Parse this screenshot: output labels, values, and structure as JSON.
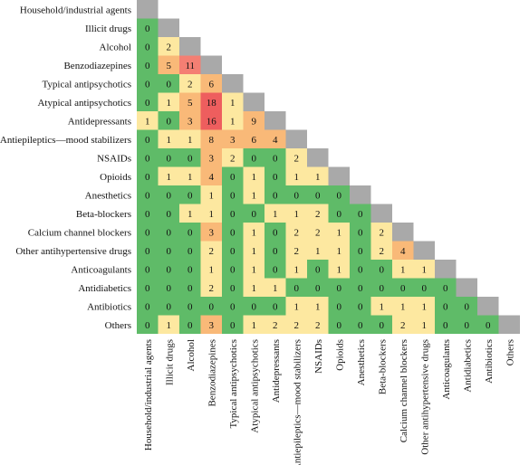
{
  "chart_data": {
    "type": "heatmap",
    "title": "",
    "xlabel": "",
    "ylabel": "",
    "categories": [
      "Household/industrial agents",
      "Illicit drugs",
      "Alcohol",
      "Benzodiazepines",
      "Typical antipsychotics",
      "Atypical antipsychotics",
      "Antidepressants",
      "Antiepileptics—mood stabilizers",
      "NSAIDs",
      "Opioids",
      "Anesthetics",
      "Beta-blockers",
      "Calcium channel blockers",
      "Other antihypertensive drugs",
      "Anticoagulants",
      "Antidiabetics",
      "Antibiotics",
      "Others"
    ],
    "values": [
      [],
      [
        0
      ],
      [
        0,
        2
      ],
      [
        0,
        5,
        11
      ],
      [
        0,
        0,
        2,
        6
      ],
      [
        0,
        1,
        5,
        18,
        1
      ],
      [
        1,
        0,
        3,
        16,
        1,
        9
      ],
      [
        0,
        1,
        1,
        8,
        3,
        6,
        4
      ],
      [
        0,
        0,
        0,
        3,
        2,
        0,
        0,
        2
      ],
      [
        0,
        1,
        1,
        4,
        0,
        1,
        0,
        1,
        1
      ],
      [
        0,
        0,
        0,
        1,
        0,
        1,
        0,
        0,
        0,
        0
      ],
      [
        0,
        0,
        1,
        1,
        0,
        0,
        1,
        1,
        2,
        0,
        0
      ],
      [
        0,
        0,
        0,
        3,
        0,
        1,
        0,
        2,
        2,
        1,
        0,
        2
      ],
      [
        0,
        0,
        0,
        2,
        0,
        1,
        0,
        2,
        1,
        1,
        0,
        2,
        4
      ],
      [
        0,
        0,
        0,
        1,
        0,
        1,
        0,
        1,
        0,
        1,
        0,
        0,
        1,
        1
      ],
      [
        0,
        0,
        0,
        2,
        0,
        1,
        1,
        0,
        0,
        0,
        0,
        0,
        0,
        0,
        0
      ],
      [
        0,
        0,
        0,
        0,
        0,
        0,
        0,
        1,
        1,
        0,
        0,
        1,
        1,
        1,
        0,
        0
      ],
      [
        0,
        1,
        0,
        3,
        0,
        1,
        2,
        2,
        2,
        0,
        0,
        0,
        2,
        1,
        0,
        0,
        0
      ]
    ],
    "colors": {
      "zero": "#5fbb68",
      "low": "#fde8a0",
      "mid": "#f9b978",
      "high": "#f47f73",
      "max": "#ee5e5e",
      "diagonal": "#a9a9a9"
    }
  }
}
